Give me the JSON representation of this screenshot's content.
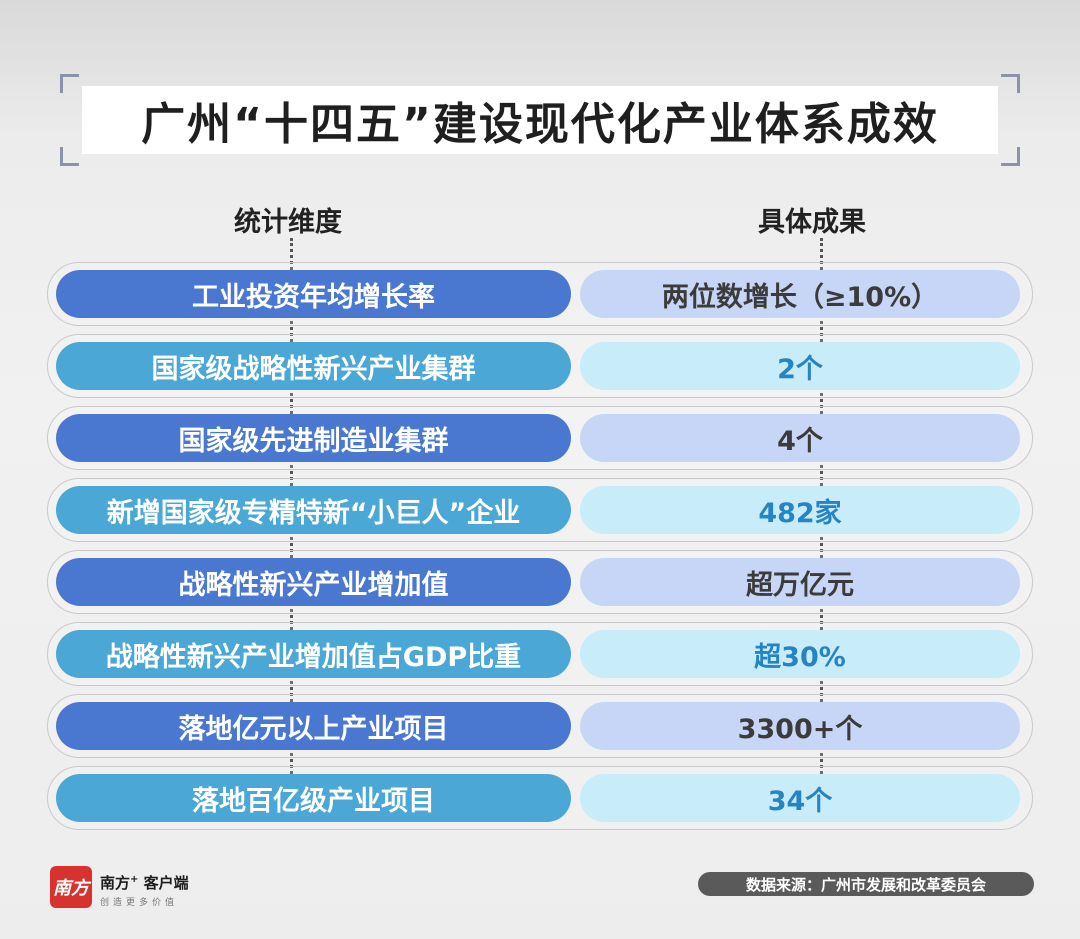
{
  "title": "广州“十四五”建设现代化产业体系成效",
  "headers": {
    "dimension": "统计维度",
    "result": "具体成果"
  },
  "rows": [
    {
      "label": "工业投资年均增长率",
      "value": "两位数增长（≥10%）"
    },
    {
      "label": "国家级战略性新兴产业集群",
      "value": "2个"
    },
    {
      "label": "国家级先进制造业集群",
      "value": "4个"
    },
    {
      "label": "新增国家级专精特新“小巨人”企业",
      "value": "482家"
    },
    {
      "label": "战略性新兴产业增加值",
      "value": "超万亿元"
    },
    {
      "label": "战略性新兴产业增加值占GDP比重",
      "value": "超30%"
    },
    {
      "label": "落地亿元以上产业项目",
      "value": "3300+个"
    },
    {
      "label": "落地百亿级产业项目",
      "value": "34个"
    }
  ],
  "footer": {
    "logo_text": "南方",
    "brand": "南方",
    "brand_plus": "+",
    "brand_suffix": "客户端",
    "slogan": "创造更多价值",
    "source": "数据来源：广州市发展和改革委员会"
  },
  "colors": {
    "left_pill_odd": "#4a78d0",
    "left_pill_even": "#4aa7d6",
    "right_pill_odd": "#c7d6f6",
    "right_pill_even": "#c9ecfb",
    "logo_red": "#d8322f"
  }
}
